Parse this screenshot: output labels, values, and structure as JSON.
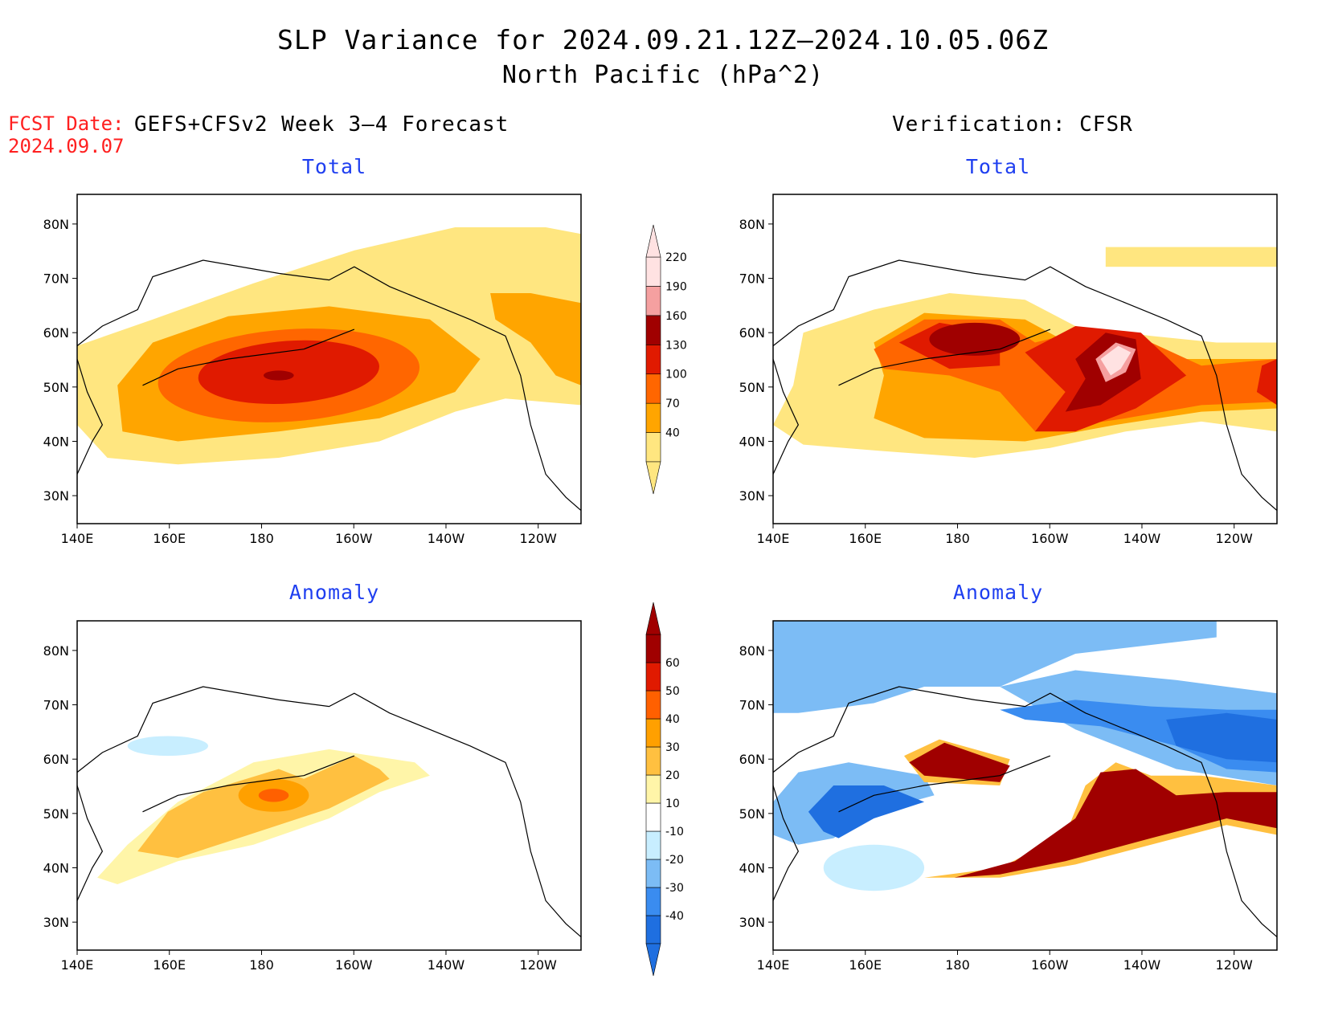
{
  "title": {
    "line1": "SLP Variance for 2024.09.21.12Z–2024.10.05.06Z",
    "line2": "North Pacific (hPa^2)"
  },
  "fcst_date": {
    "label": "FCST Date:",
    "value": "2024.09.07"
  },
  "left_header": "GEFS+CFSv2 Week 3–4 Forecast",
  "right_header": "Verification: CFSR",
  "panel_titles": {
    "total": "Total",
    "anomaly": "Anomaly"
  },
  "lat_ticks": [
    "80N",
    "70N",
    "60N",
    "50N",
    "40N",
    "30N"
  ],
  "lon_ticks": [
    "140E",
    "160E",
    "180",
    "160W",
    "140W",
    "120W"
  ],
  "colorbar_total": {
    "labels": [
      "40",
      "70",
      "100",
      "130",
      "160",
      "190",
      "220"
    ],
    "colors": [
      "#ffe680",
      "#ffa500",
      "#ff6600",
      "#e01a00",
      "#a00000",
      "#f5a0a0",
      "#ffe2e2"
    ]
  },
  "colorbar_anomaly": {
    "labels": [
      "-40",
      "-30",
      "-20",
      "-10",
      "10",
      "20",
      "30",
      "40",
      "50",
      "60"
    ],
    "colors": [
      "#1f6fe0",
      "#3a8cf0",
      "#7cbcf5",
      "#c8eeff",
      "#ffffff",
      "#fff5a8",
      "#ffc040",
      "#ffa000",
      "#ff6000",
      "#e01a00",
      "#a00000"
    ]
  },
  "palette": {
    "coast": "#000000",
    "frame": "#000000"
  }
}
